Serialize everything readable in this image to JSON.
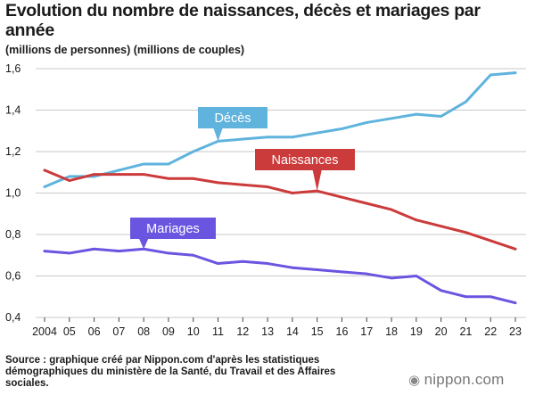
{
  "title": "Evolution du nombre de naissances, décès et mariages par année",
  "units": "(millions de personnes) (millions de couples)",
  "source": "Source : graphique créé par Nippon.com d'après les statistiques démographiques du ministère de la Santé, du Travail et des Affaires sociales.",
  "logo": {
    "icon": "nippon-logo-icon",
    "text": "nippon.com"
  },
  "chart_data": {
    "type": "line",
    "x": [
      "2004",
      "05",
      "06",
      "07",
      "08",
      "09",
      "10",
      "11",
      "12",
      "13",
      "14",
      "15",
      "16",
      "17",
      "18",
      "19",
      "20",
      "21",
      "22",
      "23"
    ],
    "ylim": [
      0.4,
      1.6
    ],
    "yticks": [
      "0,4",
      "0,6",
      "0,8",
      "1,0",
      "1,2",
      "1,4",
      "1,6"
    ],
    "grid": true,
    "series": [
      {
        "name": "Décès",
        "color": "#5fb3dd",
        "values": [
          1.03,
          1.08,
          1.08,
          1.11,
          1.14,
          1.14,
          1.2,
          1.25,
          1.26,
          1.27,
          1.27,
          1.29,
          1.31,
          1.34,
          1.36,
          1.38,
          1.37,
          1.44,
          1.57,
          1.58
        ]
      },
      {
        "name": "Naissances",
        "color": "#cc3b3b",
        "values": [
          1.11,
          1.06,
          1.09,
          1.09,
          1.09,
          1.07,
          1.07,
          1.05,
          1.04,
          1.03,
          1.0,
          1.01,
          0.98,
          0.95,
          0.92,
          0.87,
          0.84,
          0.81,
          0.77,
          0.73
        ]
      },
      {
        "name": "Mariages",
        "color": "#6a55e0",
        "values": [
          0.72,
          0.71,
          0.73,
          0.72,
          0.73,
          0.71,
          0.7,
          0.66,
          0.67,
          0.66,
          0.64,
          0.63,
          0.62,
          0.61,
          0.59,
          0.6,
          0.53,
          0.5,
          0.5,
          0.47
        ]
      }
    ]
  }
}
